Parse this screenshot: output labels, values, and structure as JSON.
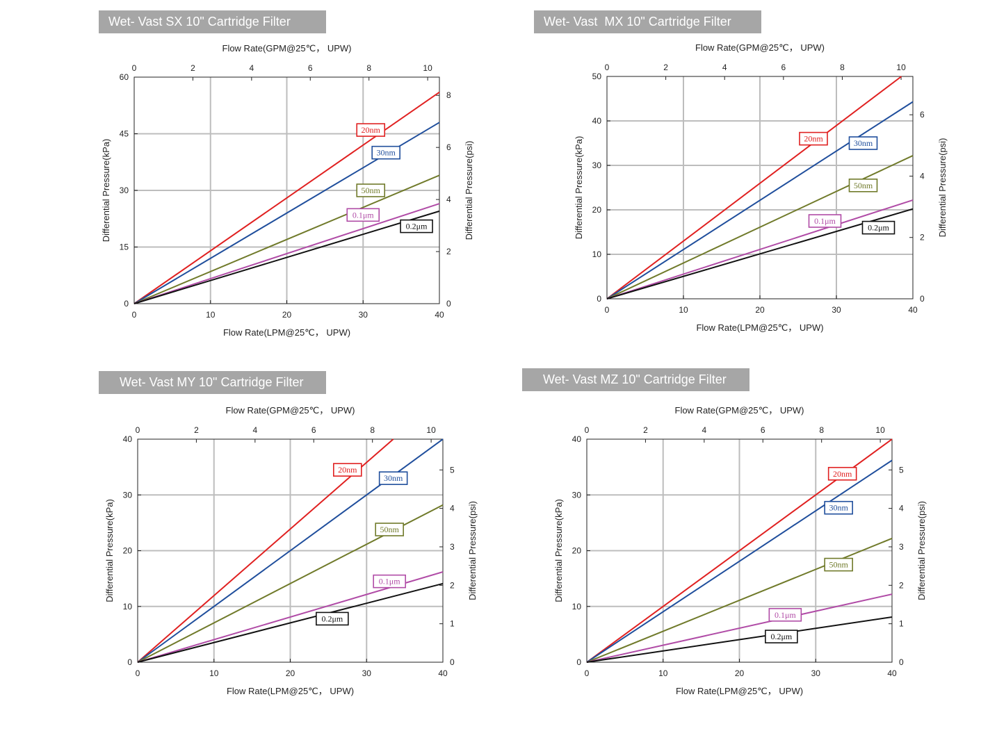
{
  "chart_data": [
    {
      "type": "line",
      "title": "Wet- Vast SX 10\" Cartridge Filter",
      "xlabel": "Flow Rate(LPM@25℃， UPW)",
      "x2label": "Flow Rate(GPM@25℃， UPW)",
      "ylabel": "Differential Pressure(kPa)",
      "y2label": "Differential Pressure(psi)",
      "xlim": [
        0,
        40
      ],
      "ylim": [
        0,
        60
      ],
      "x2lim": [
        0,
        10.4
      ],
      "y2lim": [
        0,
        8.7
      ],
      "xticks": [
        0,
        10,
        20,
        30,
        40
      ],
      "yticks": [
        0,
        15,
        30,
        45,
        60
      ],
      "x2ticks": [
        0,
        2,
        4,
        6,
        8,
        10
      ],
      "y2ticks": [
        0,
        2,
        4,
        6,
        8
      ],
      "grid": true,
      "series": [
        {
          "name": "20nm",
          "color": "#e02020",
          "x": [
            0,
            40
          ],
          "y": [
            0,
            56
          ],
          "label_at": [
            31,
            46
          ]
        },
        {
          "name": "30nm",
          "color": "#1f4e9c",
          "x": [
            0,
            40
          ],
          "y": [
            0,
            48
          ],
          "label_at": [
            33,
            40
          ]
        },
        {
          "name": "50nm",
          "color": "#707a2a",
          "x": [
            0,
            40
          ],
          "y": [
            0,
            34
          ],
          "label_at": [
            31,
            30
          ]
        },
        {
          "name": "0.1μm",
          "color": "#b04ba6",
          "x": [
            0,
            40
          ],
          "y": [
            0,
            26.5
          ],
          "label_at": [
            30,
            23.5
          ]
        },
        {
          "name": "0.2μm",
          "color": "#111111",
          "x": [
            0,
            40
          ],
          "y": [
            0,
            24.5
          ],
          "label_at": [
            37,
            20.5
          ]
        }
      ]
    },
    {
      "type": "line",
      "title": "Wet- Vast  MX 10\" Cartridge Filter",
      "xlabel": "Flow Rate(LPM@25℃， UPW)",
      "x2label": "Flow Rate(GPM@25℃， UPW)",
      "ylabel": "Differential Pressure(kPa)",
      "y2label": "Differential Pressure(psi)",
      "xlim": [
        0,
        40
      ],
      "ylim": [
        0,
        50
      ],
      "x2lim": [
        0,
        10.4
      ],
      "y2lim": [
        0,
        7.25
      ],
      "xticks": [
        0,
        10,
        20,
        30,
        40
      ],
      "yticks": [
        0,
        10,
        20,
        30,
        40,
        50
      ],
      "x2ticks": [
        0,
        2,
        4,
        6,
        8,
        10
      ],
      "y2ticks": [
        0,
        2,
        4,
        6
      ],
      "grid": true,
      "series": [
        {
          "name": "20nm",
          "color": "#e02020",
          "x": [
            0,
            38.5
          ],
          "y": [
            0,
            50
          ],
          "label_at": [
            27,
            36
          ]
        },
        {
          "name": "30nm",
          "color": "#1f4e9c",
          "x": [
            0,
            40
          ],
          "y": [
            0,
            44.3
          ],
          "label_at": [
            33.5,
            35
          ]
        },
        {
          "name": "50nm",
          "color": "#707a2a",
          "x": [
            0,
            40
          ],
          "y": [
            0,
            32.2
          ],
          "label_at": [
            33.5,
            25.5
          ]
        },
        {
          "name": "0.1μm",
          "color": "#b04ba6",
          "x": [
            0,
            40
          ],
          "y": [
            0,
            22.2
          ],
          "label_at": [
            28.5,
            17.5
          ]
        },
        {
          "name": "0.2μm",
          "color": "#111111",
          "x": [
            0,
            40
          ],
          "y": [
            0,
            20.2
          ],
          "label_at": [
            35.5,
            16
          ]
        }
      ]
    },
    {
      "type": "line",
      "title": "Wet- Vast MY 10\" Cartridge Filter",
      "xlabel": "Flow Rate(LPM@25℃， UPW)",
      "x2label": "Flow Rate(GPM@25℃， UPW)",
      "ylabel": "Differential Pressure(kPa)",
      "y2label": "Differential Pressure(psi)",
      "xlim": [
        0,
        40
      ],
      "ylim": [
        0,
        40
      ],
      "x2lim": [
        0,
        10.4
      ],
      "y2lim": [
        0,
        5.8
      ],
      "xticks": [
        0,
        10,
        20,
        30,
        40
      ],
      "yticks": [
        0,
        10,
        20,
        30,
        40
      ],
      "x2ticks": [
        0,
        2,
        4,
        6,
        8,
        10
      ],
      "y2ticks": [
        0,
        1,
        2,
        3,
        4,
        5
      ],
      "grid": true,
      "series": [
        {
          "name": "20nm",
          "color": "#e02020",
          "x": [
            0,
            33.5
          ],
          "y": [
            0,
            40
          ],
          "label_at": [
            27.5,
            34.5
          ]
        },
        {
          "name": "30nm",
          "color": "#1f4e9c",
          "x": [
            0,
            40
          ],
          "y": [
            0,
            40
          ],
          "label_at": [
            33.5,
            33
          ]
        },
        {
          "name": "50nm",
          "color": "#707a2a",
          "x": [
            0,
            40
          ],
          "y": [
            0,
            28.2
          ],
          "label_at": [
            33,
            23.8
          ]
        },
        {
          "name": "0.1μm",
          "color": "#b04ba6",
          "x": [
            0,
            40
          ],
          "y": [
            0,
            16.2
          ],
          "label_at": [
            33,
            14.5
          ]
        },
        {
          "name": "0.2μm",
          "color": "#111111",
          "x": [
            0,
            40
          ],
          "y": [
            0,
            14.1
          ],
          "label_at": [
            25.5,
            7.8
          ]
        }
      ]
    },
    {
      "type": "line",
      "title": "Wet- Vast MZ 10\" Cartridge Filter",
      "xlabel": "Flow Rate(LPM@25℃， UPW)",
      "x2label": "Flow Rate(GPM@25℃， UPW)",
      "ylabel": "Differential Pressure(kPa)",
      "y2label": "Differential Pressure(psi)",
      "xlim": [
        0,
        40
      ],
      "ylim": [
        0,
        40
      ],
      "x2lim": [
        0,
        10.4
      ],
      "y2lim": [
        0,
        5.8
      ],
      "xticks": [
        0,
        10,
        20,
        30,
        40
      ],
      "yticks": [
        0,
        10,
        20,
        30,
        40
      ],
      "x2ticks": [
        0,
        2,
        4,
        6,
        8,
        10
      ],
      "y2ticks": [
        0,
        1,
        2,
        3,
        4,
        5
      ],
      "grid": true,
      "series": [
        {
          "name": "20nm",
          "color": "#e02020",
          "x": [
            0,
            40
          ],
          "y": [
            0,
            40
          ],
          "label_at": [
            33.5,
            33.8
          ]
        },
        {
          "name": "30nm",
          "color": "#1f4e9c",
          "x": [
            0,
            40
          ],
          "y": [
            0,
            36.2
          ],
          "label_at": [
            33,
            27.7
          ]
        },
        {
          "name": "50nm",
          "color": "#707a2a",
          "x": [
            0,
            40
          ],
          "y": [
            0,
            22.2
          ],
          "label_at": [
            33,
            17.5
          ]
        },
        {
          "name": "0.1μm",
          "color": "#b04ba6",
          "x": [
            0,
            40
          ],
          "y": [
            0,
            12.2
          ],
          "label_at": [
            26,
            8.5
          ]
        },
        {
          "name": "0.2μm",
          "color": "#111111",
          "x": [
            0,
            40
          ],
          "y": [
            0,
            8.1
          ],
          "label_at": [
            25.5,
            4.6
          ]
        }
      ]
    }
  ]
}
